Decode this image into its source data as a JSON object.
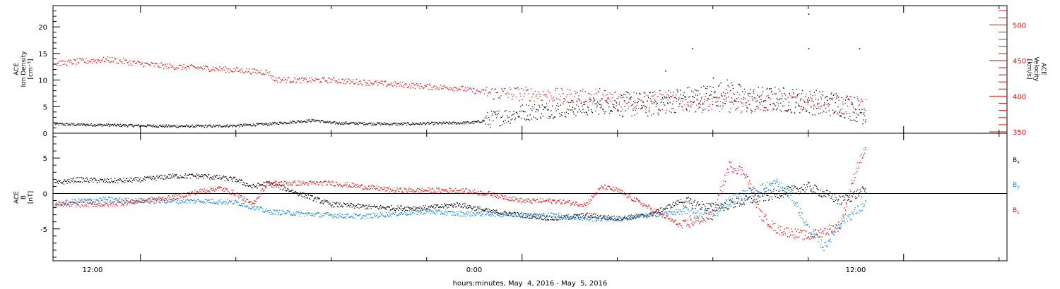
{
  "colors": {
    "black": "#000000",
    "red": "#dd1111",
    "blue": "#1a7fd6",
    "axis": "#000000",
    "right_axis": "#dd1111"
  },
  "xaxis": {
    "label": "hours:minutes, May  4, 2016 - May  5, 2016",
    "ticklabels": [
      "12:00",
      "0:00",
      "12:00"
    ]
  },
  "chart_data": [
    {
      "type": "scatter",
      "panel": "top",
      "title": "",
      "ylabel_lines": [
        "ACE",
        "Ion Density",
        "[cm⁻³]"
      ],
      "y2label_lines": [
        "ACE",
        "Velocity",
        "[km/s]"
      ],
      "x_unit": "hours since 2016-05-04 00:00 UT",
      "xlim": [
        9.25,
        39.25
      ],
      "ylim": [
        0,
        24
      ],
      "y2lim": [
        348,
        527
      ],
      "yticks": [
        0,
        5,
        10,
        15,
        20
      ],
      "y2ticks": [
        350,
        400,
        450,
        500
      ],
      "grid": false,
      "legend": "none",
      "series": [
        {
          "axis": "left",
          "color": "black",
          "x": [
            9.3,
            10,
            11,
            12,
            13,
            14,
            15,
            16,
            17,
            17.5,
            18,
            19,
            20,
            21,
            22,
            22.5,
            23,
            23.5,
            24,
            25,
            26,
            27,
            28,
            29,
            30,
            30.5,
            31,
            32,
            33,
            34,
            34.8
          ],
          "y": [
            1.8,
            1.7,
            1.6,
            1.5,
            1.4,
            1.4,
            1.5,
            1.8,
            2.3,
            2.5,
            2.0,
            1.9,
            1.8,
            1.9,
            2.0,
            2.1,
            2.7,
            3.3,
            4.0,
            4.5,
            5.0,
            5.5,
            5.5,
            6.5,
            7.0,
            8.0,
            6.5,
            6.5,
            6.0,
            5.5,
            4.0
          ],
          "spikes": [
            {
              "x": 28.5,
              "y": 11.8
            },
            {
              "x": 29.35,
              "y": 16.0
            },
            {
              "x": 30.0,
              "y": 10.5
            },
            {
              "x": 33.0,
              "y": 22.5
            },
            {
              "x": 33.0,
              "y": 16.0
            },
            {
              "x": 34.6,
              "y": 16.0
            }
          ]
        },
        {
          "axis": "right",
          "color": "red",
          "x": [
            9.3,
            10,
            11,
            12,
            13,
            14,
            15,
            16,
            16.2,
            17,
            18,
            19,
            20,
            21,
            22,
            22.5,
            23,
            24,
            25,
            26,
            27,
            28,
            29,
            30,
            31,
            32,
            33,
            34,
            34.8
          ],
          "y": [
            446,
            449,
            452,
            446,
            442,
            440,
            437,
            434,
            424,
            423,
            423,
            420,
            417,
            414,
            412,
            408,
            405,
            404,
            402,
            400,
            396,
            394,
            392,
            392,
            391,
            392,
            391,
            389,
            385
          ]
        }
      ]
    },
    {
      "type": "scatter",
      "panel": "bottom",
      "title": "",
      "ylabel_lines": [
        "ACE",
        "B",
        "[nT]"
      ],
      "x_unit": "hours since 2016-05-04 00:00 UT",
      "xlim": [
        9.25,
        39.25
      ],
      "ylim": [
        -9.5,
        8.5
      ],
      "yticks": [
        -5,
        0,
        5
      ],
      "grid": false,
      "zero_line": true,
      "legend": "right",
      "series": [
        {
          "name": "Bx",
          "color": "black",
          "x": [
            9.3,
            10,
            11,
            12,
            13,
            14,
            15,
            15.5,
            16,
            16.5,
            17,
            18,
            19,
            20,
            21,
            22,
            22.5,
            23,
            24,
            25,
            26,
            27,
            28,
            29,
            30,
            31,
            32,
            33,
            34,
            34.8
          ],
          "y": [
            1.5,
            2.0,
            1.8,
            2.0,
            2.5,
            2.5,
            2.0,
            1.0,
            1.5,
            0.8,
            0.0,
            -1.5,
            -1.8,
            -2.0,
            -2.0,
            -1.5,
            -2.0,
            -2.5,
            -3.0,
            -3.5,
            -3.0,
            -3.5,
            -3.0,
            -1.0,
            -2.0,
            -1.0,
            0.0,
            1.0,
            -1.0,
            0.5
          ]
        },
        {
          "name": "By",
          "color": "blue",
          "x": [
            9.3,
            10,
            11,
            12,
            13,
            14,
            15,
            16,
            17,
            18,
            19,
            20,
            21,
            22,
            23,
            24,
            25,
            26,
            27,
            28,
            29,
            30,
            30.5,
            31,
            32,
            32.5,
            33,
            33.5,
            34,
            34.8
          ],
          "y": [
            -1.5,
            -1.0,
            -0.8,
            -1.0,
            -1.0,
            -1.0,
            -1.2,
            -2.5,
            -2.8,
            -3.0,
            -3.2,
            -2.8,
            -2.5,
            -2.8,
            -2.8,
            -3.0,
            -3.0,
            -3.5,
            -3.5,
            -3.0,
            -2.5,
            -3.0,
            -1.0,
            0.0,
            1.5,
            -0.5,
            -5.0,
            -7.5,
            -4.0,
            -1.5
          ]
        },
        {
          "name": "Bz",
          "color": "red",
          "x": [
            9.3,
            10,
            11,
            12,
            13,
            14,
            14.5,
            15,
            15.5,
            16,
            17,
            18,
            19,
            20,
            21,
            22,
            23,
            24,
            25,
            26,
            26.5,
            27,
            28,
            29,
            30,
            30.5,
            31,
            31.5,
            32,
            33,
            34,
            34.5,
            34.8
          ],
          "y": [
            -1.5,
            -1.5,
            -1.5,
            -1.0,
            -0.5,
            0.5,
            0.8,
            0.0,
            -1.5,
            1.5,
            1.5,
            1.5,
            1.0,
            0.5,
            0.5,
            0.5,
            0.0,
            -1.0,
            -1.0,
            -1.5,
            1.0,
            0.5,
            -2.0,
            -4.5,
            -3.0,
            4.0,
            3.0,
            -3.0,
            -5.0,
            -6.0,
            -4.5,
            3.5,
            6.5
          ]
        }
      ]
    }
  ],
  "legend": {
    "entries": [
      {
        "base": "B",
        "sub": "x",
        "color": "black"
      },
      {
        "base": "B",
        "sub": "y",
        "color": "blue"
      },
      {
        "base": "B",
        "sub": "z",
        "color": "red"
      }
    ]
  }
}
